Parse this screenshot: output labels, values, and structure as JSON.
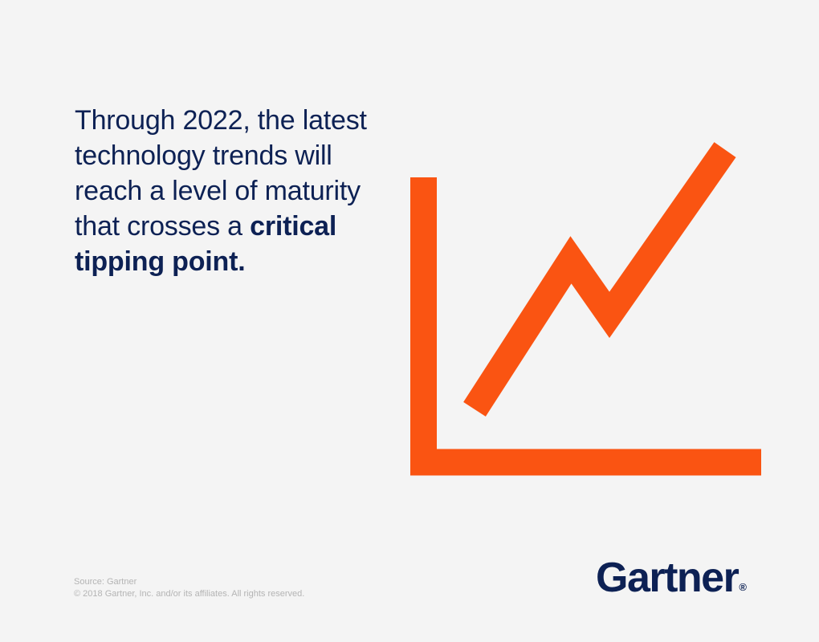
{
  "headline": {
    "lead": "Through 2022, the latest technology trends will reach a level of maturity that crosses a",
    "emphasis": "critical tipping point."
  },
  "footer": {
    "source": "Source: Gartner",
    "copyright": "© 2018 Gartner, Inc. and/or its affiliates. All rights reserved."
  },
  "logo": {
    "wordmark": "Gartner",
    "registered_mark": "®"
  },
  "illustration": {
    "icon": "trend-line-chart-icon",
    "trend_points": [
      {
        "x": 0,
        "y": 0
      },
      {
        "x": 1,
        "y": 1.9
      },
      {
        "x": 1.4,
        "y": 1.2
      },
      {
        "x": 2.6,
        "y": 3.3
      }
    ]
  },
  "colors": {
    "background": "#f4f4f4",
    "text_primary": "#0d2154",
    "accent_orange": "#fa5412",
    "footer_text": "#b4b4b4"
  }
}
